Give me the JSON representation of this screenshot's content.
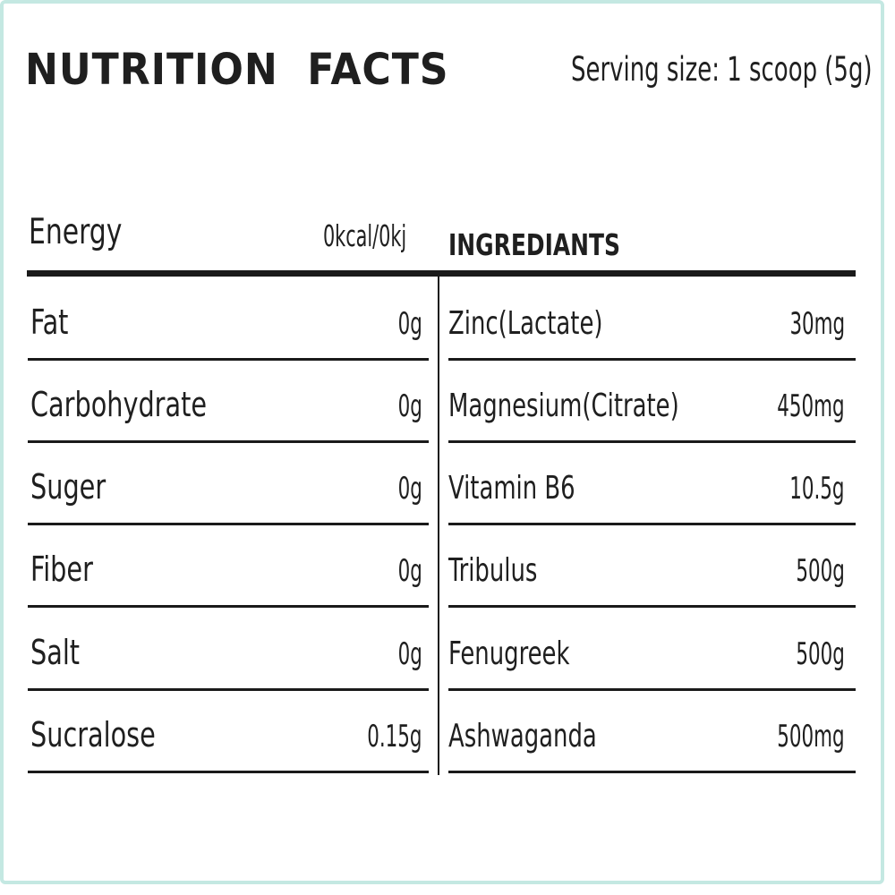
{
  "title": "NUTRITION  FACTS",
  "serving_size": "Serving size: 1 scoop (5g)",
  "energy": {
    "label": "Energy",
    "value": "0kcal/0kj"
  },
  "ingredients_heading": "INGREDIANTS",
  "nutrients": [
    {
      "label": "Fat",
      "value": "0g"
    },
    {
      "label": "Carbohydrate",
      "value": "0g"
    },
    {
      "label": "Suger",
      "value": "0g"
    },
    {
      "label": "Fiber",
      "value": "0g"
    },
    {
      "label": "Salt",
      "value": "0g"
    },
    {
      "label": "Sucralose",
      "value": "0.15g"
    }
  ],
  "ingredients": [
    {
      "label": "Zinc(Lactate)",
      "value": "30mg"
    },
    {
      "label": "Magnesium(Citrate)",
      "value": "450mg"
    },
    {
      "label": "Vitamin B6",
      "value": "10.5g"
    },
    {
      "label": "Tribulus",
      "value": "500g"
    },
    {
      "label": "Fenugreek",
      "value": "500g"
    },
    {
      "label": "Ashwaganda",
      "value": "500mg"
    }
  ],
  "colors": {
    "border": "#c4e8e2",
    "text": "#1f1f1f",
    "rule": "#1a1a1a"
  }
}
